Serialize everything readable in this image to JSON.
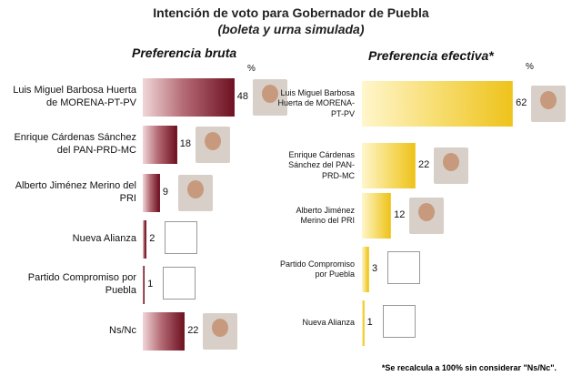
{
  "title": "Intención de voto para Gobernador de Puebla",
  "subtitle": "(boleta y urna simulada)",
  "footnote": "*Se recalcula a 100% sin considerar \"Ns/Nc\".",
  "chart_data": [
    {
      "type": "bar",
      "orientation": "horizontal",
      "title": "Preferencia bruta",
      "unit_label": "%",
      "color": "#7a1a2a",
      "categories": [
        "Luis Miguel Barbosa Huerta de MORENA-PT-PV",
        "Enrique Cárdenas Sánchez del PAN-PRD-MC",
        "Alberto Jiménez Merino del PRI",
        "Nueva Alianza",
        "Partido Compromiso por Puebla",
        "Ns/Nc"
      ],
      "values": [
        48,
        18,
        9,
        2,
        1,
        22
      ]
    },
    {
      "type": "bar",
      "orientation": "horizontal",
      "title": "Preferencia efectiva*",
      "unit_label": "%",
      "color": "#f3cf3a",
      "categories": [
        "Luis Miguel Barbosa Huerta de MORENA-PT-PV",
        "Enrique Cárdenas Sánchez del PAN-PRD-MC",
        "Alberto Jiménez Merino del PRI",
        "Partido Compromiso por Puebla",
        "Nueva Alianza"
      ],
      "values": [
        62,
        22,
        12,
        3,
        1
      ]
    }
  ]
}
